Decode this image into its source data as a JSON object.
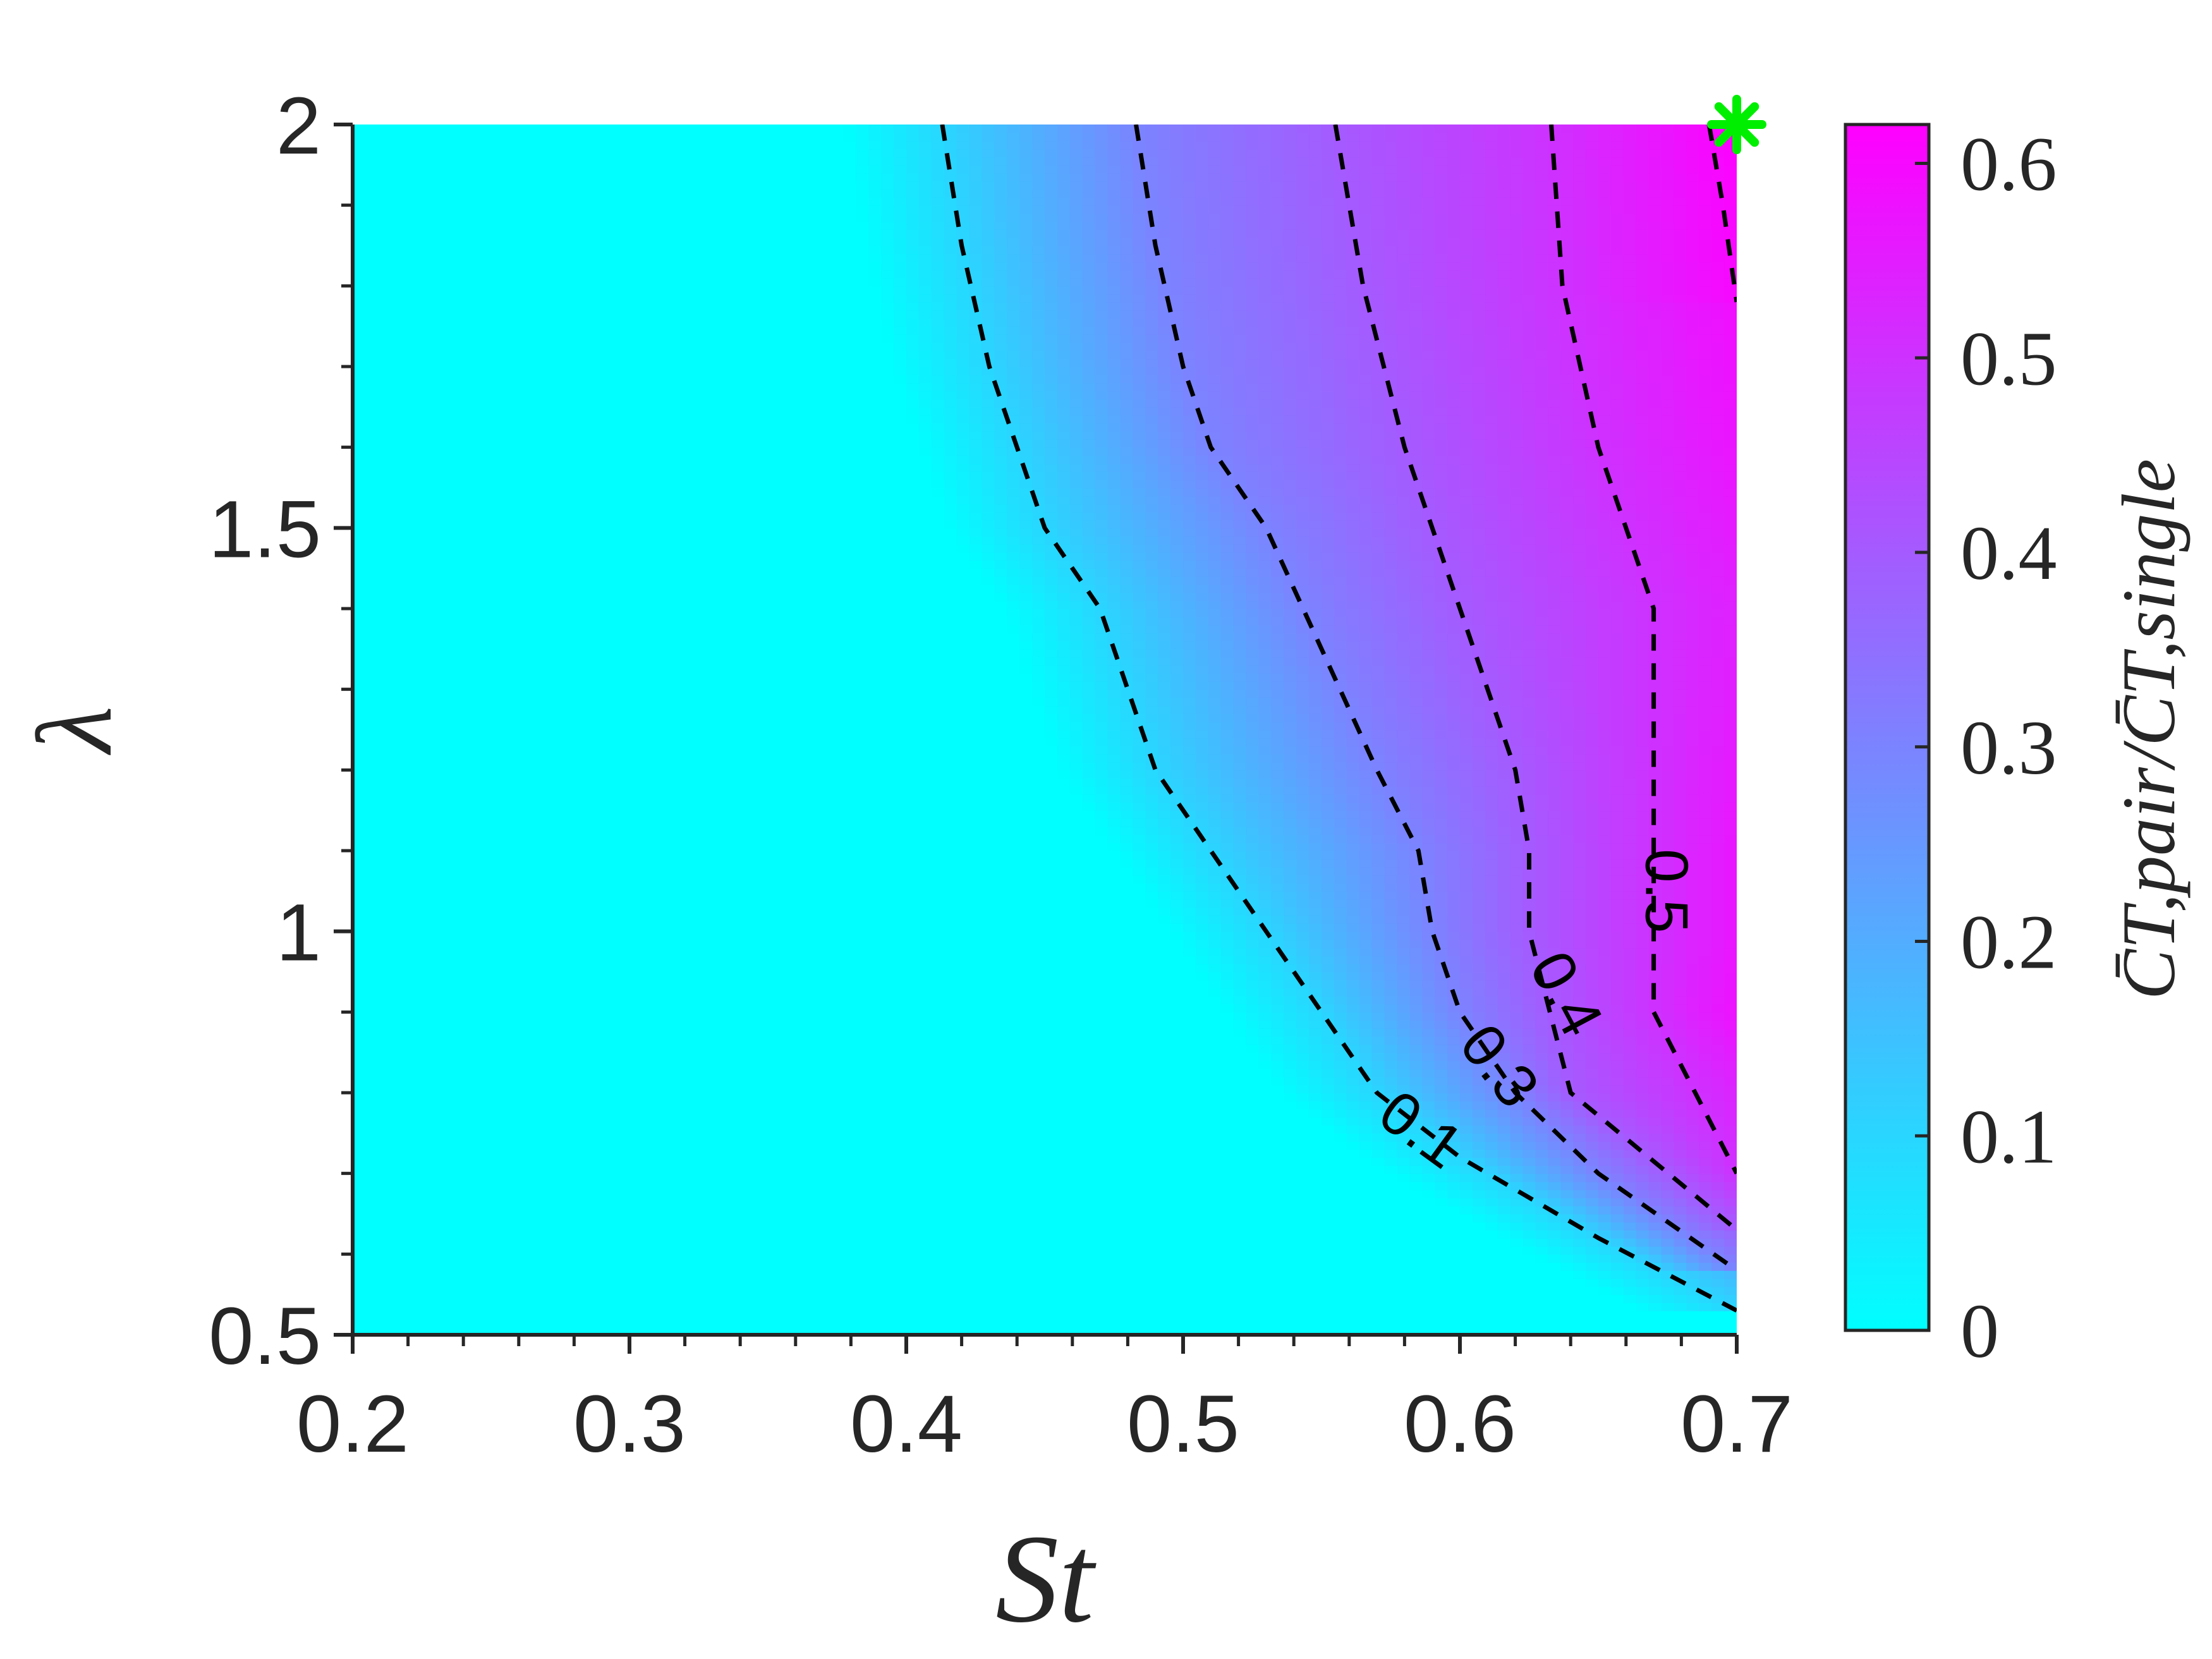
{
  "chart_data": {
    "type": "heatmap",
    "xlabel": "St",
    "ylabel": "λ",
    "colorbar_label": "C̄T,pair/C̄T,single",
    "xlim": [
      0.2,
      0.7
    ],
    "ylim": [
      0.5,
      2
    ],
    "clim": [
      0,
      0.62
    ],
    "x_ticks": [
      "0.2",
      "0.3",
      "0.4",
      "0.5",
      "0.6",
      "0.7"
    ],
    "y_ticks": [
      "0.5",
      "1",
      "1.5",
      "2"
    ],
    "colorbar_ticks": [
      "0",
      "0.1",
      "0.2",
      "0.3",
      "0.4",
      "0.5",
      "0.6"
    ],
    "colormap": [
      "#00ffff",
      "#ff00ff"
    ],
    "contours": [
      {
        "level": "0.1",
        "points": [
          [
            0.413,
            2.0
          ],
          [
            0.42,
            1.85
          ],
          [
            0.43,
            1.7
          ],
          [
            0.44,
            1.6
          ],
          [
            0.45,
            1.5
          ],
          [
            0.47,
            1.4
          ],
          [
            0.48,
            1.3
          ],
          [
            0.49,
            1.2
          ],
          [
            0.51,
            1.1
          ],
          [
            0.53,
            1.0
          ],
          [
            0.55,
            0.9
          ],
          [
            0.57,
            0.8
          ],
          [
            0.6,
            0.72
          ],
          [
            0.65,
            0.62
          ],
          [
            0.7,
            0.53
          ]
        ]
      },
      {
        "level": "0.3",
        "points": [
          [
            0.483,
            2.0
          ],
          [
            0.49,
            1.85
          ],
          [
            0.5,
            1.7
          ],
          [
            0.51,
            1.6
          ],
          [
            0.53,
            1.5
          ],
          [
            0.55,
            1.35
          ],
          [
            0.57,
            1.2
          ],
          [
            0.585,
            1.1
          ],
          [
            0.59,
            1.0
          ],
          [
            0.6,
            0.9
          ],
          [
            0.62,
            0.8
          ],
          [
            0.65,
            0.7
          ],
          [
            0.7,
            0.58
          ]
        ]
      },
      {
        "level": "0.4",
        "points": [
          [
            0.555,
            2.0
          ],
          [
            0.565,
            1.8
          ],
          [
            0.58,
            1.6
          ],
          [
            0.6,
            1.4
          ],
          [
            0.62,
            1.2
          ],
          [
            0.625,
            1.1
          ],
          [
            0.625,
            1.0
          ],
          [
            0.64,
            0.8
          ],
          [
            0.7,
            0.63
          ]
        ]
      },
      {
        "level": "0.5",
        "points": [
          [
            0.633,
            2.0
          ],
          [
            0.637,
            1.8
          ],
          [
            0.65,
            1.6
          ],
          [
            0.67,
            1.4
          ],
          [
            0.67,
            1.3
          ],
          [
            0.67,
            1.2
          ],
          [
            0.67,
            1.1
          ],
          [
            0.67,
            1.0
          ],
          [
            0.67,
            0.9
          ],
          [
            0.7,
            0.7
          ]
        ]
      },
      {
        "level": "",
        "points": [
          [
            0.69,
            2.0
          ],
          [
            0.695,
            1.9
          ],
          [
            0.7,
            1.78
          ]
        ]
      }
    ],
    "contour_labels": [
      {
        "text": "0.1",
        "x": 0.585,
        "y": 0.75,
        "angle": 36
      },
      {
        "text": "0.3",
        "x": 0.613,
        "y": 0.83,
        "angle": 52
      },
      {
        "text": "0.4",
        "x": 0.637,
        "y": 0.92,
        "angle": 62
      },
      {
        "text": "0.5",
        "x": 0.673,
        "y": 1.05,
        "angle": 90
      }
    ],
    "marker": {
      "x": 0.7,
      "y": 2.0,
      "symbol": "asterisk",
      "color": "#00ee00"
    }
  }
}
